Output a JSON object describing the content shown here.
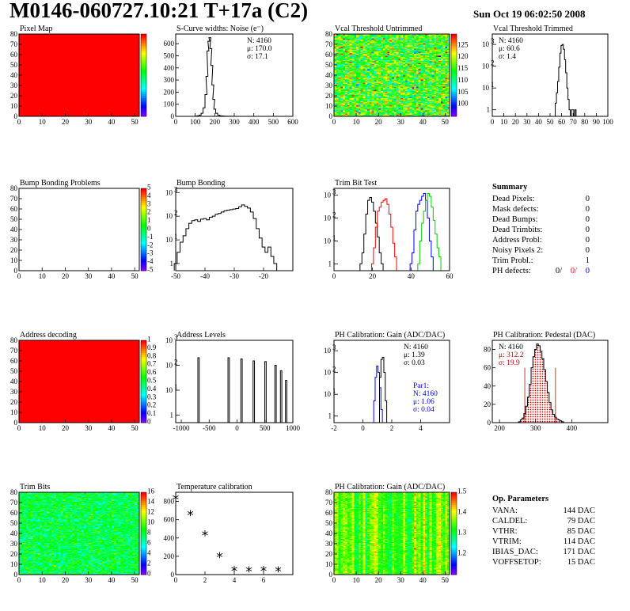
{
  "header": {
    "title": "M0146-060727.10:21 T+17a (C2)",
    "date": "Sun Oct 19 06:02:50 2008"
  },
  "colors": {
    "red": "#ff0000",
    "green": "#00cc00",
    "blue": "#0000ff",
    "black": "#000000",
    "hatch": "#cc0000"
  },
  "summary": {
    "title": "Summary",
    "rows": [
      {
        "label": "Dead Pixels:",
        "value": "0"
      },
      {
        "label": "Mask defects:",
        "value": "0"
      },
      {
        "label": "Dead Bumps:",
        "value": "0"
      },
      {
        "label": "Dead Trimbits:",
        "value": "0"
      },
      {
        "label": "Address Probl:",
        "value": "0"
      },
      {
        "label": "Noisy Pixels 2:",
        "value": "0"
      },
      {
        "label": "Trim Probl.:",
        "value": "1"
      }
    ],
    "ph_defects": {
      "label": "PH defects:",
      "black": "0/",
      "red": "0/",
      "blue": "0"
    }
  },
  "op_parameters": {
    "title": "Op. Parameters",
    "rows": [
      {
        "label": "VANA:",
        "value": "144 DAC"
      },
      {
        "label": "CALDEL:",
        "value": "79 DAC"
      },
      {
        "label": "VTHR:",
        "value": "85 DAC"
      },
      {
        "label": "VTRIM:",
        "value": "114 DAC"
      },
      {
        "label": "IBIAS_DAC:",
        "value": "171 DAC"
      },
      {
        "label": "VOFFSETOP:",
        "value": "15 DAC"
      }
    ]
  },
  "chart_data": [
    {
      "id": "pixel_map",
      "type": "heatmap",
      "title": "Pixel Map",
      "xlim": [
        0,
        52
      ],
      "ylim": [
        0,
        80
      ],
      "xticks": [
        0,
        10,
        20,
        30,
        40,
        50
      ],
      "yticks": [
        0,
        10,
        20,
        30,
        40,
        50,
        60,
        70,
        80
      ],
      "fill": "uniform",
      "z_level": 10,
      "zlim": [
        0,
        10
      ],
      "palette": "rainbow",
      "colorbar": true
    },
    {
      "id": "scurve_noise",
      "type": "line",
      "title": "S-Curve widths: Noise (e⁻)",
      "xlim": [
        0,
        600
      ],
      "ylim": [
        0,
        680
      ],
      "xticks": [
        0,
        100,
        200,
        300,
        400,
        500,
        600
      ],
      "yticks": [
        0,
        100,
        200,
        300,
        400,
        500,
        600
      ],
      "stats": [
        "N: 4160",
        "μ: 170.0",
        "σ: 17.1"
      ],
      "series": [
        {
          "color": "black",
          "x": [
            105,
            115,
            125,
            135,
            145,
            155,
            160,
            165,
            170,
            175,
            180,
            185,
            190,
            195,
            200,
            210,
            220,
            230,
            240,
            250,
            260,
            270,
            280,
            290,
            300
          ],
          "y": [
            2,
            5,
            10,
            25,
            70,
            180,
            330,
            540,
            620,
            650,
            560,
            420,
            260,
            140,
            60,
            25,
            10,
            5,
            3,
            2,
            1,
            1,
            1,
            1,
            0
          ]
        }
      ]
    },
    {
      "id": "vcal_untrimmed",
      "type": "heatmap",
      "title": "Vcal Threshold Untrimmed",
      "xlim": [
        0,
        52
      ],
      "ylim": [
        0,
        80
      ],
      "xticks": [
        0,
        10,
        20,
        30,
        40,
        50
      ],
      "yticks": [
        0,
        10,
        20,
        30,
        40,
        50,
        60,
        70,
        80
      ],
      "fill": "noise",
      "z_mean": 116,
      "z_spread": 8,
      "zlim": [
        95,
        130
      ],
      "zticks": [
        100,
        105,
        110,
        115,
        120,
        125
      ],
      "palette": "rainbow",
      "colorbar": true
    },
    {
      "id": "vcal_trimmed",
      "type": "line",
      "title": "Vcal Threshold Trimmed",
      "xlim": [
        0,
        100
      ],
      "ylog": true,
      "ylim": [
        0.5,
        3000
      ],
      "xticks": [
        0,
        10,
        20,
        30,
        40,
        50,
        60,
        70,
        80,
        90,
        100
      ],
      "ylogticks": [
        1,
        10,
        100,
        1000
      ],
      "stats": [
        "N: 4160",
        "μ: 60.6",
        "σ:  1.4"
      ],
      "series": [
        {
          "color": "black",
          "x": [
            55,
            56,
            57,
            58,
            59,
            60,
            61,
            62,
            63,
            64,
            65,
            66,
            67,
            68,
            69,
            70,
            71,
            72,
            73
          ],
          "y": [
            2,
            6,
            20,
            90,
            400,
            900,
            1000,
            600,
            200,
            50,
            10,
            3,
            1,
            0,
            1,
            1,
            0,
            1,
            0
          ]
        }
      ]
    },
    {
      "id": "bump_problems",
      "type": "heatmap",
      "title": "Bump Bonding Problems",
      "xlim": [
        0,
        52
      ],
      "ylim": [
        0,
        80
      ],
      "xticks": [
        0,
        10,
        20,
        30,
        40,
        50
      ],
      "yticks": [
        0,
        10,
        20,
        30,
        40,
        50,
        60,
        70,
        80
      ],
      "fill": "empty",
      "zlim": [
        -5,
        5
      ],
      "zticks": [
        -5,
        -4,
        -3,
        -2,
        -1,
        0,
        1,
        2,
        3,
        4,
        5
      ],
      "palette": "rainbow",
      "colorbar": true
    },
    {
      "id": "bump_bonding",
      "type": "line",
      "title": "Bump Bonding",
      "xlim": [
        -50,
        -10
      ],
      "ylog": true,
      "ylim": [
        0.5,
        1500
      ],
      "xticks": [
        -50,
        -40,
        -30,
        -20
      ],
      "ylogticks": [
        1,
        10,
        100,
        1000
      ],
      "series": [
        {
          "color": "black",
          "x": [
            -50,
            -49,
            -48,
            -47,
            -46,
            -45,
            -44,
            -43,
            -42,
            -41,
            -40,
            -39,
            -38,
            -37,
            -36,
            -35,
            -34,
            -33,
            -32,
            -31,
            -30,
            -29,
            -28,
            -27,
            -26,
            -25,
            -24,
            -23,
            -22,
            -21,
            -20,
            -19,
            -18,
            -17,
            -16,
            -15,
            -14,
            -13
          ],
          "y": [
            1,
            3,
            8,
            15,
            30,
            50,
            65,
            70,
            60,
            75,
            80,
            70,
            90,
            100,
            120,
            130,
            150,
            170,
            180,
            190,
            200,
            210,
            250,
            300,
            260,
            220,
            150,
            80,
            30,
            12,
            5,
            3,
            5,
            2,
            1,
            0,
            0,
            0
          ]
        }
      ]
    },
    {
      "id": "trim_bit_test",
      "type": "line",
      "title": "Trim Bit Test",
      "xlim": [
        0,
        60
      ],
      "ylog": true,
      "ylim": [
        0.5,
        2000
      ],
      "xticks": [
        0,
        20,
        40,
        60
      ],
      "ylogticks": [
        1,
        10,
        100,
        1000
      ],
      "series": [
        {
          "color": "black",
          "x": [
            14,
            15,
            16,
            17,
            18,
            19,
            20,
            21,
            22,
            23,
            24,
            25,
            26,
            27
          ],
          "y": [
            1,
            3,
            20,
            150,
            600,
            800,
            500,
            200,
            60,
            15,
            3,
            1,
            0,
            0
          ]
        },
        {
          "color": "red",
          "x": [
            20,
            21,
            22,
            23,
            24,
            25,
            26,
            27,
            28,
            29,
            30,
            31,
            32,
            33
          ],
          "y": [
            1,
            5,
            40,
            200,
            300,
            500,
            600,
            700,
            400,
            150,
            40,
            8,
            2,
            0
          ]
        },
        {
          "color": "blue",
          "x": [
            40,
            41,
            42,
            43,
            44,
            45,
            46,
            47,
            48,
            49,
            50,
            51,
            52
          ],
          "y": [
            1,
            3,
            30,
            200,
            400,
            600,
            900,
            1200,
            600,
            100,
            10,
            2,
            0
          ]
        },
        {
          "color": "green",
          "x": [
            44,
            45,
            46,
            47,
            48,
            49,
            50,
            51,
            52,
            53,
            54,
            55,
            56
          ],
          "y": [
            1,
            10,
            60,
            200,
            600,
            1200,
            900,
            300,
            80,
            20,
            5,
            2,
            0
          ]
        }
      ]
    },
    {
      "id": "address_decoding",
      "type": "heatmap",
      "title": "Address decoding",
      "xlim": [
        0,
        52
      ],
      "ylim": [
        0,
        80
      ],
      "xticks": [
        0,
        10,
        20,
        30,
        40,
        50
      ],
      "yticks": [
        0,
        10,
        20,
        30,
        40,
        50,
        60,
        70,
        80
      ],
      "fill": "uniform",
      "z_level": 1,
      "zlim": [
        0,
        1
      ],
      "zticks": [
        0,
        0.1,
        0.2,
        0.3,
        0.4,
        0.5,
        0.6,
        0.7,
        0.8,
        0.9,
        1
      ],
      "palette": "rainbow",
      "colorbar": true
    },
    {
      "id": "address_levels",
      "type": "line",
      "title": "Address Levels",
      "xlim": [
        -1100,
        1000
      ],
      "ylog": true,
      "ylim": [
        0.5,
        1000
      ],
      "xticks": [
        -1000,
        -500,
        0,
        500,
        1000
      ],
      "ylogticks": [
        1,
        10,
        100,
        1000
      ],
      "peaks": [
        {
          "x": -690,
          "y": 200
        },
        {
          "x": -150,
          "y": 200
        },
        {
          "x": 80,
          "y": 180
        },
        {
          "x": 300,
          "y": 150
        },
        {
          "x": 510,
          "y": 140
        },
        {
          "x": 690,
          "y": 100
        },
        {
          "x": 790,
          "y": 60
        },
        {
          "x": 880,
          "y": 25
        }
      ]
    },
    {
      "id": "ph_gain",
      "type": "line",
      "title": "PH Calibration: Gain (ADC/DAC)",
      "xlim": [
        -2,
        6
      ],
      "ylog": true,
      "ylim": [
        0.5,
        3000
      ],
      "xticks": [
        -2,
        0,
        2,
        4
      ],
      "ylogticks": [
        1,
        10,
        100,
        1000
      ],
      "stats": [
        "N: 4160",
        "μ: 1.39",
        "σ: 0.03"
      ],
      "stats2": [
        "Par1:",
        "N: 4160",
        "μ: 1.06",
        "σ: 0.04"
      ],
      "series": [
        {
          "color": "blue",
          "x": [
            0.8,
            0.9,
            1.0,
            1.1,
            1.2,
            1.3
          ],
          "y": [
            5,
            60,
            200,
            100,
            20,
            2
          ]
        },
        {
          "color": "black",
          "x": [
            1.2,
            1.3,
            1.4,
            1.5,
            1.6
          ],
          "y": [
            60,
            400,
            500,
            100,
            5
          ]
        }
      ]
    },
    {
      "id": "ph_pedestal",
      "type": "line",
      "title": "PH Calibration: Pedestal (DAC)",
      "xlim": [
        180,
        500
      ],
      "ylim": [
        0,
        90
      ],
      "xticks": [
        200,
        300,
        400
      ],
      "yticks": [
        0,
        20,
        40,
        60,
        80
      ],
      "stats": [
        "N: 4160",
        "μ:  312.2",
        "σ: 19.9"
      ],
      "series": [
        {
          "color": "black",
          "x": [
            255,
            260,
            265,
            270,
            275,
            280,
            285,
            290,
            295,
            300,
            305,
            310,
            315,
            320,
            325,
            330,
            335,
            340,
            345,
            350,
            355,
            360,
            365,
            370,
            375,
            380
          ],
          "y": [
            1,
            3,
            5,
            10,
            18,
            28,
            42,
            60,
            72,
            80,
            86,
            84,
            78,
            70,
            58,
            45,
            33,
            22,
            14,
            9,
            6,
            4,
            3,
            2,
            1,
            0
          ]
        }
      ]
    },
    {
      "id": "trim_bits",
      "type": "heatmap",
      "title": "Trim Bits",
      "xlim": [
        0,
        52
      ],
      "ylim": [
        0,
        80
      ],
      "xticks": [
        0,
        10,
        20,
        30,
        40,
        50
      ],
      "yticks": [
        0,
        10,
        20,
        30,
        40,
        50,
        60,
        70,
        80
      ],
      "fill": "noise",
      "z_mean": 8,
      "z_spread": 1.8,
      "zlim": [
        0,
        16
      ],
      "zticks": [
        0,
        2,
        4,
        6,
        8,
        10,
        12,
        14,
        16
      ],
      "palette": "rainbow",
      "colorbar": true
    },
    {
      "id": "temperature_calibration",
      "type": "scatter",
      "title": "Temperature calibration",
      "xlim": [
        0,
        8
      ],
      "ylim": [
        0,
        900
      ],
      "xticks": [
        0,
        2,
        4,
        6
      ],
      "yticks": [
        0,
        200,
        400,
        600,
        800
      ],
      "x": [
        0,
        1,
        2,
        3,
        4,
        5,
        6,
        7
      ],
      "y": [
        820,
        650,
        430,
        190,
        40,
        35,
        40,
        35
      ]
    },
    {
      "id": "ph_gain_map",
      "type": "heatmap",
      "title": "PH Calibration: Gain (ADC/DAC)",
      "xlim": [
        0,
        52
      ],
      "ylim": [
        0,
        80
      ],
      "xticks": [
        0,
        10,
        20,
        30,
        40,
        50
      ],
      "yticks": [
        0,
        10,
        20,
        30,
        40,
        50,
        60,
        70,
        80
      ],
      "fill": "columns",
      "z_mean": 1.35,
      "z_spread": 0.06,
      "zlim": [
        1.1,
        1.5
      ],
      "zticks": [
        1.2,
        1.3,
        1.4,
        1.5
      ],
      "palette": "rainbow",
      "colorbar": true
    }
  ]
}
